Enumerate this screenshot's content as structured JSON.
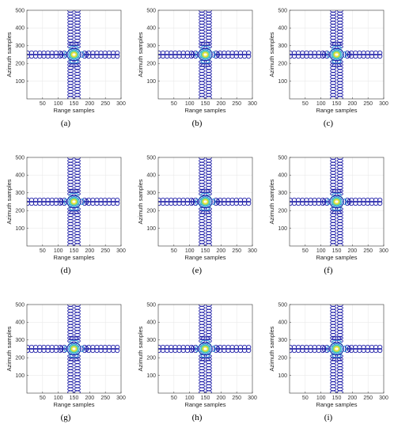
{
  "chart_data": [
    {
      "panel_label": "(a)",
      "type": "contour",
      "xlabel": "Range samples",
      "ylabel": "Azimuth samples",
      "xlim": [
        0,
        300
      ],
      "ylim": [
        0,
        500
      ],
      "xticks": [
        50,
        100,
        150,
        200,
        250,
        300
      ],
      "yticks": [
        100,
        200,
        300,
        400,
        500
      ],
      "grid": true,
      "center": {
        "range": 150,
        "azimuth": 250
      }
    },
    {
      "panel_label": "(b)",
      "type": "contour",
      "xlabel": "Range samples",
      "ylabel": "Azimuth samples",
      "xlim": [
        0,
        300
      ],
      "ylim": [
        0,
        500
      ],
      "xticks": [
        50,
        100,
        150,
        200,
        250,
        300
      ],
      "yticks": [
        100,
        200,
        300,
        400,
        500
      ],
      "grid": true,
      "center": {
        "range": 150,
        "azimuth": 250
      }
    },
    {
      "panel_label": "(c)",
      "type": "contour",
      "xlabel": "Range samples",
      "ylabel": "Azimuth samples",
      "xlim": [
        0,
        300
      ],
      "ylim": [
        0,
        500
      ],
      "xticks": [
        50,
        100,
        150,
        200,
        250,
        300
      ],
      "yticks": [
        100,
        200,
        300,
        400,
        500
      ],
      "grid": true,
      "center": {
        "range": 150,
        "azimuth": 250
      }
    },
    {
      "panel_label": "(d)",
      "type": "contour",
      "xlabel": "Range samples",
      "ylabel": "Azimuth samples",
      "xlim": [
        0,
        300
      ],
      "ylim": [
        0,
        500
      ],
      "xticks": [
        50,
        100,
        150,
        200,
        250,
        300
      ],
      "yticks": [
        100,
        200,
        300,
        400,
        500
      ],
      "grid": true,
      "center": {
        "range": 150,
        "azimuth": 250
      }
    },
    {
      "panel_label": "(e)",
      "type": "contour",
      "xlabel": "Range samples",
      "ylabel": "Azimuth samples",
      "xlim": [
        0,
        300
      ],
      "ylim": [
        0,
        500
      ],
      "xticks": [
        50,
        100,
        150,
        200,
        250,
        300
      ],
      "yticks": [
        100,
        200,
        300,
        400,
        500
      ],
      "grid": true,
      "center": {
        "range": 150,
        "azimuth": 250
      }
    },
    {
      "panel_label": "(f)",
      "type": "contour",
      "xlabel": "Range samples",
      "ylabel": "Azimuth samples",
      "xlim": [
        0,
        300
      ],
      "ylim": [
        0,
        500
      ],
      "xticks": [
        50,
        100,
        150,
        200,
        250,
        300
      ],
      "yticks": [
        100,
        200,
        300,
        400,
        500
      ],
      "grid": true,
      "center": {
        "range": 150,
        "azimuth": 250
      }
    },
    {
      "panel_label": "(g)",
      "type": "contour",
      "xlabel": "Range samples",
      "ylabel": "Azimuth samples",
      "xlim": [
        0,
        300
      ],
      "ylim": [
        0,
        500
      ],
      "xticks": [
        50,
        100,
        150,
        200,
        250,
        300
      ],
      "yticks": [
        100,
        200,
        300,
        400,
        500
      ],
      "grid": true,
      "center": {
        "range": 150,
        "azimuth": 250
      }
    },
    {
      "panel_label": "(h)",
      "type": "contour",
      "xlabel": "Range samples",
      "ylabel": "Azimuth samples",
      "xlim": [
        0,
        300
      ],
      "ylim": [
        0,
        500
      ],
      "xticks": [
        50,
        100,
        150,
        200,
        250,
        300
      ],
      "yticks": [
        100,
        200,
        300,
        400,
        500
      ],
      "grid": true,
      "center": {
        "range": 150,
        "azimuth": 250
      }
    },
    {
      "panel_label": "(i)",
      "type": "contour",
      "xlabel": "Range samples",
      "ylabel": "Azimuth samples",
      "xlim": [
        0,
        300
      ],
      "ylim": [
        0,
        500
      ],
      "xticks": [
        50,
        100,
        150,
        200,
        250,
        300
      ],
      "yticks": [
        100,
        200,
        300,
        400,
        500
      ],
      "grid": true,
      "center": {
        "range": 150,
        "azimuth": 250
      }
    }
  ],
  "colors": {
    "outer_contour": "#1f1fa8",
    "mid_contour": "#2b8fd6",
    "inner_contour": "#3fc7c0",
    "core_contour": "#8ed36b",
    "peak_contour": "#e8e23a",
    "grid": "#e6e6e6",
    "axis": "#333333"
  }
}
